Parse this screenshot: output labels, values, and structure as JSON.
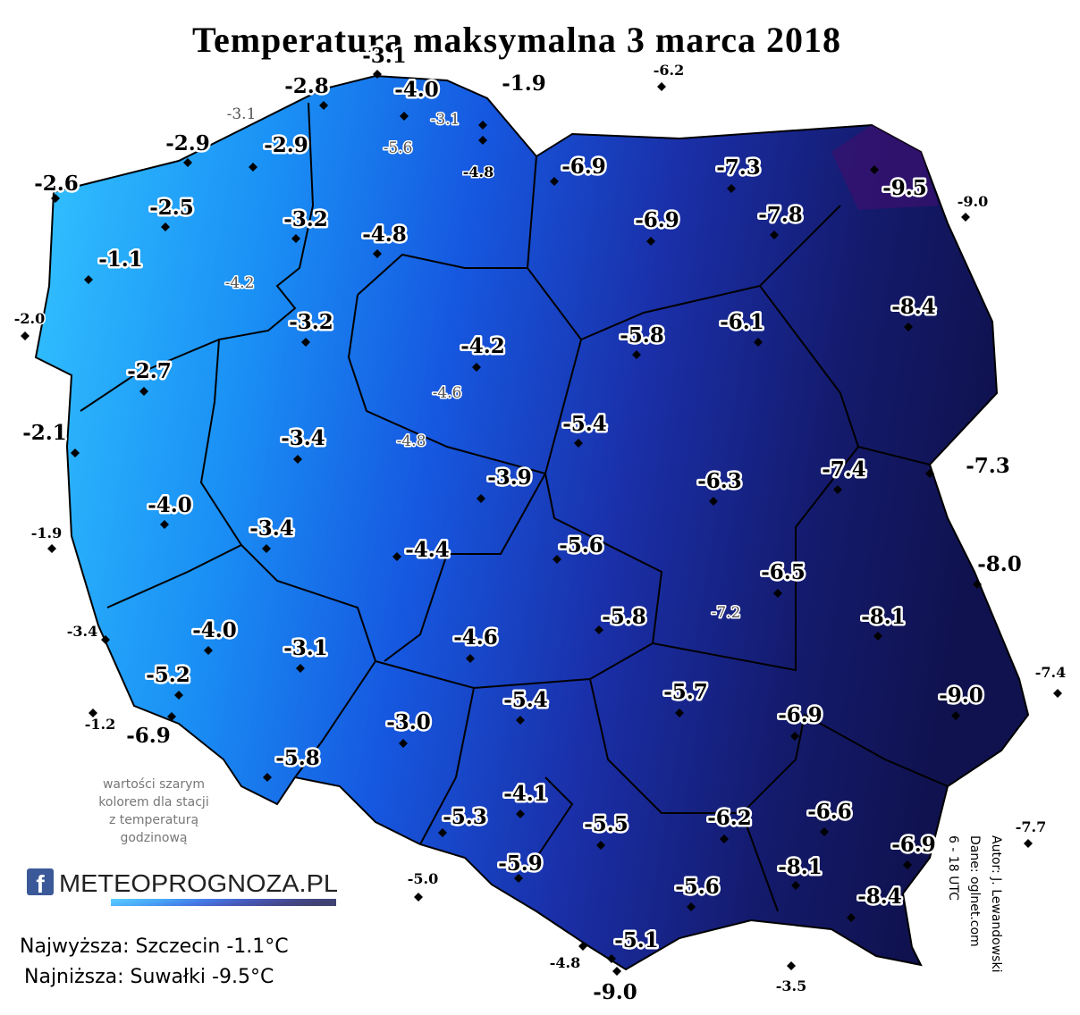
{
  "title": "Temperatura maksymalna 3 marca 2018",
  "stations": [
    "-3.1",
    "-2.8",
    "-4.0",
    "-1.9",
    "-2.9",
    "-2.9",
    "-6.9",
    "-7.3",
    "-9.5",
    "-2.6",
    "-2.5",
    "-3.2",
    "-6.9",
    "-7.8",
    "-4.8",
    "-1.1",
    "-3.2",
    "-8.4",
    "-5.8",
    "-6.1",
    "-4.2",
    "-2.7",
    "-2.1",
    "-3.4",
    "-5.4",
    "-3.9",
    "-6.3",
    "-7.4",
    "-7.3",
    "-4.0",
    "-3.4",
    "-5.6",
    "-4.4",
    "-8.0",
    "-6.5",
    "-5.8",
    "-8.1",
    "-4.0",
    "-3.1",
    "-4.6",
    "-5.2",
    "-9.0",
    "-5.7",
    "-5.4",
    "-6.9",
    "-6.9",
    "-3.0",
    "-5.8",
    "-4.1",
    "-5.3",
    "-6.6",
    "-5.5",
    "-6.2",
    "-6.9",
    "-5.9",
    "-8.1",
    "-5.6",
    "-8.4",
    "-5.1",
    "-9.0"
  ],
  "stations_hourly": [
    "-3.1",
    "-3.1",
    "-5.6",
    "-4.2",
    "-4.6",
    "-4.8",
    "-7.2"
  ],
  "stations_small": [
    "-6.2",
    "-4.8",
    "-9.0",
    "-2.0",
    "-1.9",
    "-3.4",
    "-1.2",
    "-7.4",
    "-7.7",
    "-5.0",
    "-4.8",
    "-3.5"
  ],
  "note": [
    "wartości szarym",
    "kolorem dla stacji",
    "z temperaturą",
    "godzinową"
  ],
  "logo": "METEOPROGNOZA.PL",
  "footer": [
    "Najwyższa: Szczecin -1.1°C",
    "Najniższa: Suwałki -9.5°C"
  ],
  "credits": [
    "Autor: J. Lewandowski",
    "Dane: oglnet.com",
    "6 - 18 UTC"
  ]
}
